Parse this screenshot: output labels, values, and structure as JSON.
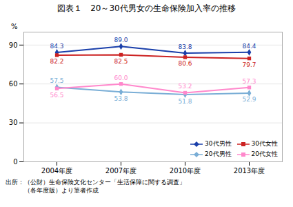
{
  "chart_data": {
    "type": "line",
    "title": "図表１　20～30代男女の生命保険加入率の推移",
    "categories": [
      "2004年度",
      "2007年度",
      "2010年度",
      "2013年度"
    ],
    "series": [
      {
        "name": "30代男性",
        "color": "#1a3faa",
        "marker": "diamond",
        "values": [
          84.3,
          89.0,
          83.8,
          84.4
        ],
        "value_labels": [
          "84.3",
          "89.0",
          "83.8",
          "84.4"
        ]
      },
      {
        "name": "30代女性",
        "color": "#cc2222",
        "marker": "square",
        "values": [
          82.2,
          82.5,
          80.6,
          79.7
        ],
        "value_labels": [
          "82.2",
          "82.5",
          "80.6",
          "79.7"
        ]
      },
      {
        "name": "20代男性",
        "color": "#7aaed6",
        "marker": "diamond",
        "values": [
          57.5,
          53.8,
          51.8,
          52.9
        ],
        "value_labels": [
          "57.5",
          "53.8",
          "51.8",
          "52.9"
        ]
      },
      {
        "name": "20代女性",
        "color": "#ff88cc",
        "marker": "square",
        "values": [
          56.5,
          60.0,
          53.2,
          57.3
        ],
        "value_labels": [
          "56.5",
          "60.0",
          "53.2",
          "57.3"
        ]
      }
    ],
    "ylim": [
      0,
      100
    ],
    "yticks": [
      0,
      30,
      60,
      90
    ],
    "ylabel": "%",
    "grid": true,
    "data_labels": true,
    "legend": "lower right",
    "annotations": [
      "出所：（公財）生命保険文化センター「生活保障に関する調査」",
      "　　　（各年度版）より筆者作成"
    ]
  }
}
